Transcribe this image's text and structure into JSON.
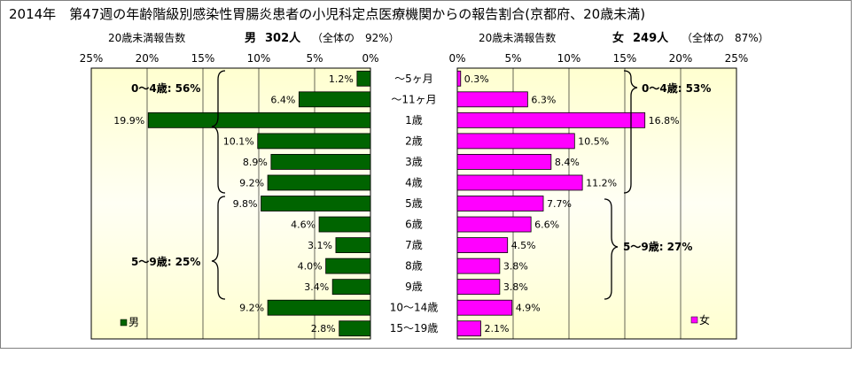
{
  "title": "2014年　第47週の年齢階級別感染性胃腸炎患者の小児科定点医療機関からの報告割合(京都府、20歳未満)",
  "male_header": {
    "left": "20歳未満報告数",
    "name": "男",
    "count": "302人",
    "ratio": "（全体の　92%）"
  },
  "female_header": {
    "left": "20歳未満報告数",
    "name": "女",
    "count": "249人",
    "ratio": "（全体の　87%）"
  },
  "colors": {
    "male": "#006400",
    "female": "#ff00ff",
    "panel_edge": "#ffffd0",
    "panel_center": "#fffff4"
  },
  "chart_data": {
    "type": "bar",
    "orientation": "horizontal-butterfly",
    "categories": [
      "～5ヶ月",
      "～11ヶ月",
      "1歳",
      "2歳",
      "3歳",
      "4歳",
      "5歳",
      "6歳",
      "7歳",
      "8歳",
      "9歳",
      "10～14歳",
      "15～19歳"
    ],
    "series": [
      {
        "name": "男",
        "values": [
          1.2,
          6.4,
          19.9,
          10.1,
          8.9,
          9.2,
          9.8,
          4.6,
          3.1,
          4.0,
          3.4,
          9.2,
          2.8
        ],
        "labels": [
          "1.2%",
          "6.4%",
          "19.9%",
          "10.1%",
          "8.9%",
          "9.2%",
          "9.8%",
          "4.6%",
          "3.1%",
          "4.0%",
          "3.4%",
          "9.2%",
          "2.8%"
        ]
      },
      {
        "name": "女",
        "values": [
          0.3,
          6.3,
          16.8,
          10.5,
          8.4,
          11.2,
          7.7,
          6.6,
          4.5,
          3.8,
          3.8,
          4.9,
          2.1
        ],
        "labels": [
          "0.3%",
          "6.3%",
          "16.8%",
          "10.5%",
          "8.4%",
          "11.2%",
          "7.7%",
          "6.6%",
          "4.5%",
          "3.8%",
          "3.8%",
          "4.9%",
          "2.1%"
        ]
      }
    ],
    "x_ticks": [
      "25%",
      "20%",
      "15%",
      "10%",
      "5%",
      "0%"
    ],
    "x_ticks_female": [
      "0%",
      "5%",
      "10%",
      "15%",
      "20%",
      "25%"
    ],
    "xlim": [
      0,
      25
    ],
    "grid": true,
    "annotations": {
      "male": [
        "0～4歳: 56%",
        "5～9歳: 25%"
      ],
      "female": [
        "0～4歳: 53%",
        "5～9歳: 27%"
      ]
    }
  }
}
